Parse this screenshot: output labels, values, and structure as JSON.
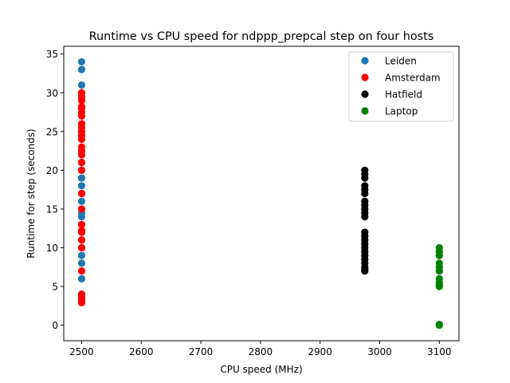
{
  "chart_data": {
    "type": "scatter",
    "title": "Runtime vs CPU speed for ndppp_prepcal step on four hosts",
    "xlabel": "CPU speed (MHz)",
    "ylabel": "Runtime for step (seconds)",
    "xlim": [
      2470,
      3133
    ],
    "ylim": [
      -2,
      36
    ],
    "xticks": [
      2500,
      2600,
      2700,
      2800,
      2900,
      3000,
      3100
    ],
    "yticks": [
      0,
      5,
      10,
      15,
      20,
      25,
      30,
      35
    ],
    "grid": false,
    "legend_position": "top-right",
    "series": [
      {
        "name": "Leiden",
        "color": "#1f77b4",
        "x": [
          2500,
          2500,
          2500,
          2500,
          2500,
          2500,
          2500,
          2500,
          2500,
          2500,
          2500,
          2500,
          2500,
          2500,
          2500,
          2500,
          2500,
          2500,
          2500,
          2500,
          2500,
          2500,
          2500,
          2500
        ],
        "y": [
          34,
          33,
          31,
          30,
          29,
          26,
          21,
          20,
          19,
          18,
          17,
          16,
          15,
          14.5,
          14,
          13,
          12,
          11,
          10,
          9,
          8,
          6,
          4,
          3
        ]
      },
      {
        "name": "Amsterdam",
        "color": "#ff0000",
        "x": [
          2500,
          2500,
          2500,
          2500,
          2500,
          2500,
          2500,
          2500,
          2500,
          2500,
          2500,
          2500,
          2500,
          2500,
          2500,
          2500,
          2500,
          2500,
          2500,
          2500,
          2500,
          2500,
          2500,
          2500,
          2500,
          2500,
          2500,
          2500,
          2500,
          2500,
          2500
        ],
        "y": [
          30,
          29.5,
          29,
          28,
          27.5,
          27,
          26,
          25.5,
          25,
          24.5,
          24,
          23,
          22.5,
          22,
          21,
          20,
          17,
          15,
          13,
          12,
          11,
          10,
          7,
          4,
          3.5,
          3,
          2.9,
          3.2,
          3.8,
          12.2,
          28.2
        ]
      },
      {
        "name": "Hatfield",
        "color": "#000000",
        "x": [
          2975,
          2975,
          2975,
          2975,
          2975,
          2975,
          2975,
          2975,
          2975,
          2975,
          2975,
          2975,
          2975,
          2975,
          2975,
          2975,
          2975,
          2975,
          2975,
          2975,
          2975,
          2975,
          2975
        ],
        "y": [
          20,
          19.5,
          19,
          18,
          17.5,
          17,
          16,
          15.5,
          15,
          14.5,
          14,
          12,
          11.5,
          11,
          10.5,
          10,
          9.5,
          9,
          8.5,
          8,
          7.5,
          7,
          7.2
        ]
      },
      {
        "name": "Laptop",
        "color": "#008000",
        "x": [
          3100,
          3100,
          3100,
          3100,
          3100,
          3100,
          3100,
          3100,
          3100,
          3100,
          3100,
          3100
        ],
        "y": [
          10,
          9.5,
          9,
          8,
          7.5,
          7,
          6,
          5.5,
          5,
          5.2,
          0,
          0.1
        ]
      }
    ]
  }
}
